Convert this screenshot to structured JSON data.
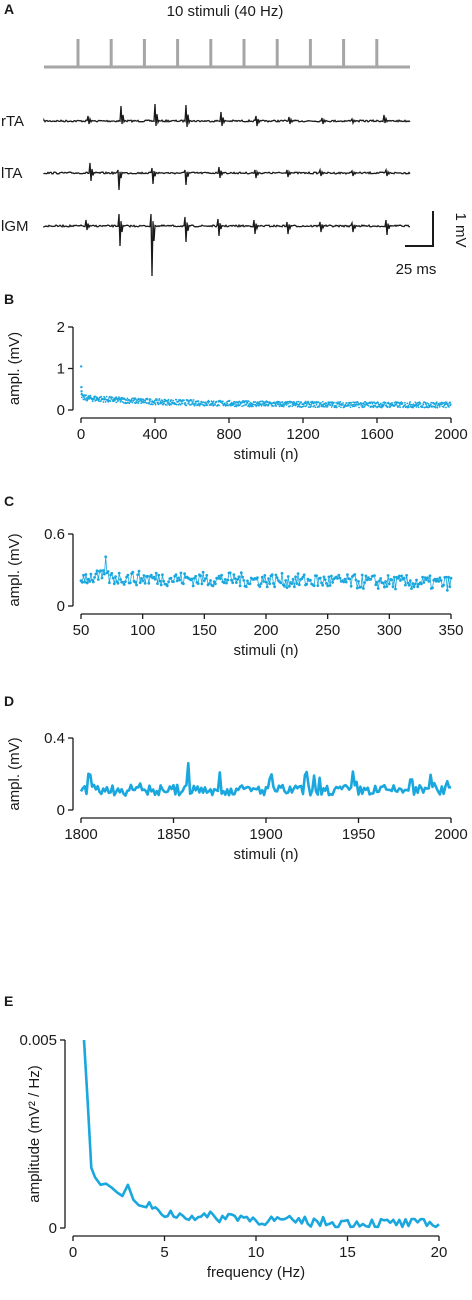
{
  "colors": {
    "data": "#1aa7de",
    "ink": "#1a1a1a",
    "stim": "#a6a6a6"
  },
  "panel_a": {
    "letter": "A",
    "stim_title": "10 stimuli (40 Hz)",
    "traces": [
      "rTA",
      "lTA",
      "lGM"
    ],
    "scale_y": "1 mV",
    "scale_x": "25 ms"
  },
  "chart_data": [
    {
      "panel": "B",
      "type": "scatter",
      "xlabel": "stimuli (n)",
      "ylabel": "ampl. (mV)",
      "xlim": [
        0,
        2000
      ],
      "ylim": [
        0,
        2
      ],
      "xticks": [
        "0",
        "400",
        "800",
        "1200",
        "1600",
        "2000"
      ],
      "yticks": [
        "0",
        "1",
        "2"
      ],
      "summary": {
        "initial_values": [
          1.05,
          0.55,
          0.45,
          0.38
        ],
        "early_mean": 0.3,
        "late_mean": 0.12
      }
    },
    {
      "panel": "C",
      "type": "line",
      "xlabel": "stimuli (n)",
      "ylabel": "ampl. (mV)",
      "xlim": [
        50,
        350
      ],
      "ylim": [
        0,
        0.6
      ],
      "xticks": [
        "50",
        "100",
        "150",
        "200",
        "250",
        "300",
        "350"
      ],
      "yticks": [
        "0",
        "0.6"
      ],
      "summary": {
        "mean_start": 0.24,
        "mean_end": 0.19,
        "peak": 0.41,
        "peak_at": 70
      }
    },
    {
      "panel": "D",
      "type": "line",
      "xlabel": "stimuli (n)",
      "ylabel": "ampl. (mV)",
      "xlim": [
        1800,
        2000
      ],
      "ylim": [
        0,
        0.4
      ],
      "xticks": [
        "1800",
        "1850",
        "1900",
        "1950",
        "2000"
      ],
      "yticks": [
        "0",
        "0.4"
      ],
      "summary": {
        "mean": 0.11,
        "peak": 0.26,
        "peak_at": 1858
      }
    },
    {
      "panel": "E",
      "type": "line",
      "xlabel": "frequency (Hz)",
      "ylabel": "amplitude (mV² / Hz)",
      "xlim": [
        0,
        20
      ],
      "ylim": [
        0,
        0.005
      ],
      "xticks": [
        "0",
        "5",
        "10",
        "15",
        "20"
      ],
      "yticks": [
        "0",
        "0.005"
      ],
      "x": [
        0.6,
        0.8,
        1.0,
        1.2,
        1.5,
        1.8,
        2.1,
        2.4,
        2.7,
        3.0,
        3.3,
        3.6,
        4.0,
        4.5,
        5.0,
        6,
        7,
        8,
        9,
        10,
        12,
        14,
        16,
        18,
        20
      ],
      "y": [
        0.005,
        0.0034,
        0.0016,
        0.00135,
        0.00115,
        0.00118,
        0.00108,
        0.00095,
        0.00085,
        0.00115,
        0.00075,
        0.0006,
        0.00055,
        0.00048,
        0.00035,
        0.0003,
        0.00027,
        0.00024,
        0.00028,
        0.00018,
        0.00014,
        0.00011,
        9e-05,
        8e-05,
        5e-05
      ]
    }
  ]
}
